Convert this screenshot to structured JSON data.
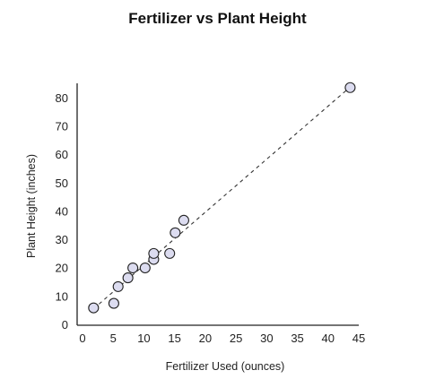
{
  "chart_data": {
    "type": "scatter",
    "title": "Fertilizer vs Plant Height",
    "xlabel": "Fertilizer Used (ounces)",
    "ylabel": "Plant Height (inches)",
    "xlim": [
      0,
      45
    ],
    "ylim": [
      0,
      85
    ],
    "xticks": [
      0,
      5,
      10,
      15,
      20,
      25,
      30,
      35,
      40,
      45
    ],
    "yticks": [
      0,
      10,
      20,
      30,
      40,
      50,
      60,
      70,
      80
    ],
    "grid": false,
    "trendline": {
      "style": "dashed",
      "from": [
        1.8,
        5.5
      ],
      "to": [
        43.5,
        83.5
      ]
    },
    "points": [
      {
        "x": 1.8,
        "y": 5.8
      },
      {
        "x": 5.1,
        "y": 7.4
      },
      {
        "x": 5.8,
        "y": 13.3
      },
      {
        "x": 7.4,
        "y": 16.4
      },
      {
        "x": 8.2,
        "y": 19.9
      },
      {
        "x": 10.2,
        "y": 19.9
      },
      {
        "x": 11.6,
        "y": 22.9
      },
      {
        "x": 11.6,
        "y": 25.0
      },
      {
        "x": 14.2,
        "y": 25.0
      },
      {
        "x": 15.1,
        "y": 32.3
      },
      {
        "x": 16.5,
        "y": 36.7
      },
      {
        "x": 43.6,
        "y": 83.5
      }
    ],
    "colors": {
      "marker_fill": "#dcdcf0",
      "marker_stroke": "#222222",
      "axis": "#222222",
      "trendline": "#333333"
    }
  }
}
